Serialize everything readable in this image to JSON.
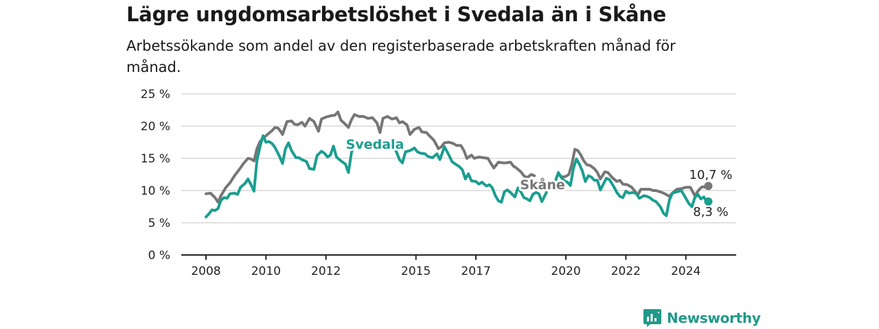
{
  "title": "Lägre ungdomsarbetslöshet i Svedala än i Skåne",
  "subtitle": "Arbetssökande som andel av den registerbaserade arbetskraften månad för månad.",
  "brand": {
    "name": "Newsworthy"
  },
  "colors": {
    "svedala": "#1a9e90",
    "skane": "#767676",
    "grid": "#d9d9d9",
    "axis": "#222222",
    "text": "#222222"
  },
  "chart_data": {
    "type": "line",
    "title": "Lägre ungdomsarbetslöshet i Svedala än i Skåne",
    "subtitle": "Arbetssökande som andel av den registerbaserade arbetskraften månad för månad.",
    "xlabel": "",
    "ylabel": "",
    "ylim": [
      0,
      25
    ],
    "yticks": [
      0,
      5,
      10,
      15,
      20,
      25
    ],
    "ytick_labels": [
      "0 %",
      "5 %",
      "10 %",
      "15 %",
      "20 %",
      "25 %"
    ],
    "xticks": [
      2008,
      2010,
      2012,
      2015,
      2017,
      2020,
      2022,
      2024
    ],
    "xtick_labels": [
      "2008",
      "2010",
      "2012",
      "2015",
      "2017",
      "2020",
      "2022",
      "2024"
    ],
    "xlim": [
      2007.6,
      2025.8
    ],
    "grid": true,
    "legend": "inline labels",
    "series": [
      {
        "name": "Skåne",
        "end_label": "10,7 %",
        "points": [
          [
            2008.0,
            9.5
          ],
          [
            2008.15,
            9.6
          ],
          [
            2008.3,
            8.9
          ],
          [
            2008.4,
            8.2
          ],
          [
            2008.5,
            9.2
          ],
          [
            2008.65,
            10.4
          ],
          [
            2008.8,
            11.2
          ],
          [
            2008.95,
            12.3
          ],
          [
            2009.1,
            13.2
          ],
          [
            2009.25,
            14.2
          ],
          [
            2009.4,
            15.0
          ],
          [
            2009.5,
            14.9
          ],
          [
            2009.6,
            14.6
          ],
          [
            2009.7,
            16.5
          ],
          [
            2009.8,
            17.6
          ],
          [
            2009.9,
            18.1
          ],
          [
            2010.0,
            18.5
          ],
          [
            2010.1,
            18.9
          ],
          [
            2010.2,
            19.3
          ],
          [
            2010.3,
            19.8
          ],
          [
            2010.4,
            19.7
          ],
          [
            2010.5,
            19.1
          ],
          [
            2010.55,
            18.7
          ],
          [
            2010.7,
            20.7
          ],
          [
            2010.85,
            20.8
          ],
          [
            2010.95,
            20.3
          ],
          [
            2011.05,
            20.2
          ],
          [
            2011.2,
            20.6
          ],
          [
            2011.3,
            20.0
          ],
          [
            2011.45,
            21.2
          ],
          [
            2011.6,
            20.7
          ],
          [
            2011.75,
            19.2
          ],
          [
            2011.85,
            21.1
          ],
          [
            2012.0,
            21.4
          ],
          [
            2012.15,
            21.6
          ],
          [
            2012.3,
            21.7
          ],
          [
            2012.4,
            22.2
          ],
          [
            2012.5,
            20.9
          ],
          [
            2012.6,
            20.5
          ],
          [
            2012.75,
            19.8
          ],
          [
            2012.85,
            21.0
          ],
          [
            2012.95,
            21.8
          ],
          [
            2013.1,
            21.5
          ],
          [
            2013.25,
            21.5
          ],
          [
            2013.4,
            21.2
          ],
          [
            2013.55,
            21.3
          ],
          [
            2013.7,
            20.5
          ],
          [
            2013.8,
            19.0
          ],
          [
            2013.9,
            21.2
          ],
          [
            2014.05,
            21.5
          ],
          [
            2014.2,
            21.1
          ],
          [
            2014.35,
            21.3
          ],
          [
            2014.45,
            20.5
          ],
          [
            2014.55,
            20.7
          ],
          [
            2014.7,
            20.2
          ],
          [
            2014.8,
            18.7
          ],
          [
            2014.95,
            19.5
          ],
          [
            2015.1,
            19.8
          ],
          [
            2015.2,
            19.1
          ],
          [
            2015.35,
            19.0
          ],
          [
            2015.45,
            18.5
          ],
          [
            2015.6,
            17.8
          ],
          [
            2015.75,
            16.5
          ],
          [
            2015.85,
            16.8
          ],
          [
            2015.95,
            17.4
          ],
          [
            2016.1,
            17.5
          ],
          [
            2016.25,
            17.3
          ],
          [
            2016.35,
            17.0
          ],
          [
            2016.5,
            17.0
          ],
          [
            2016.6,
            16.2
          ],
          [
            2016.7,
            15.0
          ],
          [
            2016.85,
            15.5
          ],
          [
            2016.95,
            15.0
          ],
          [
            2017.1,
            15.2
          ],
          [
            2017.25,
            15.1
          ],
          [
            2017.4,
            15.0
          ],
          [
            2017.5,
            14.2
          ],
          [
            2017.6,
            13.5
          ],
          [
            2017.75,
            14.4
          ],
          [
            2017.9,
            14.3
          ],
          [
            2018.0,
            14.3
          ],
          [
            2018.15,
            14.4
          ],
          [
            2018.25,
            13.8
          ],
          [
            2018.35,
            13.5
          ],
          [
            2018.5,
            12.9
          ],
          [
            2018.6,
            12.3
          ],
          [
            2018.7,
            12.0
          ],
          [
            2018.85,
            12.5
          ],
          [
            2018.95,
            12.3
          ]
        ],
        "points_after_label": [
          [
            2019.8,
            12.3
          ],
          [
            2019.9,
            12.1
          ],
          [
            2020.0,
            12.2
          ],
          [
            2020.1,
            12.5
          ],
          [
            2020.2,
            14.1
          ],
          [
            2020.3,
            16.4
          ],
          [
            2020.4,
            16.2
          ],
          [
            2020.5,
            15.5
          ],
          [
            2020.6,
            14.6
          ],
          [
            2020.7,
            14.0
          ],
          [
            2020.8,
            13.9
          ],
          [
            2020.95,
            13.4
          ],
          [
            2021.05,
            12.8
          ],
          [
            2021.15,
            11.8
          ],
          [
            2021.3,
            12.9
          ],
          [
            2021.4,
            12.8
          ],
          [
            2021.55,
            12.0
          ],
          [
            2021.7,
            11.4
          ],
          [
            2021.8,
            11.6
          ],
          [
            2021.9,
            11.0
          ],
          [
            2022.05,
            10.9
          ],
          [
            2022.2,
            10.5
          ],
          [
            2022.3,
            9.9
          ],
          [
            2022.4,
            9.3
          ],
          [
            2022.5,
            10.2
          ],
          [
            2022.65,
            10.2
          ],
          [
            2022.8,
            10.2
          ],
          [
            2022.9,
            10.0
          ],
          [
            2023.0,
            10.0
          ],
          [
            2023.15,
            9.8
          ],
          [
            2023.3,
            9.5
          ],
          [
            2023.45,
            9.1
          ],
          [
            2023.55,
            9.6
          ],
          [
            2023.7,
            10.2
          ],
          [
            2023.85,
            10.3
          ],
          [
            2024.0,
            10.5
          ],
          [
            2024.15,
            10.5
          ],
          [
            2024.3,
            9.2
          ],
          [
            2024.45,
            10.2
          ],
          [
            2024.55,
            10.6
          ],
          [
            2024.65,
            10.5
          ],
          [
            2024.75,
            10.7
          ]
        ]
      },
      {
        "name": "Svedala",
        "end_label": "8,3 %",
        "points": [
          [
            2008.0,
            5.9
          ],
          [
            2008.1,
            6.4
          ],
          [
            2008.2,
            7.0
          ],
          [
            2008.3,
            6.9
          ],
          [
            2008.4,
            7.2
          ],
          [
            2008.5,
            8.5
          ],
          [
            2008.6,
            8.9
          ],
          [
            2008.7,
            8.8
          ],
          [
            2008.8,
            9.5
          ],
          [
            2008.95,
            9.6
          ],
          [
            2009.05,
            9.4
          ],
          [
            2009.15,
            10.5
          ],
          [
            2009.3,
            11.1
          ],
          [
            2009.4,
            11.8
          ],
          [
            2009.5,
            10.9
          ],
          [
            2009.6,
            9.9
          ],
          [
            2009.7,
            14.7
          ],
          [
            2009.8,
            16.8
          ],
          [
            2009.9,
            18.5
          ],
          [
            2010.0,
            17.5
          ],
          [
            2010.1,
            17.6
          ],
          [
            2010.2,
            17.3
          ],
          [
            2010.3,
            16.7
          ],
          [
            2010.45,
            15.3
          ],
          [
            2010.55,
            14.2
          ],
          [
            2010.65,
            16.5
          ],
          [
            2010.75,
            17.4
          ],
          [
            2010.85,
            16.2
          ],
          [
            2011.0,
            15.1
          ],
          [
            2011.1,
            15.1
          ],
          [
            2011.2,
            14.8
          ],
          [
            2011.35,
            14.5
          ],
          [
            2011.45,
            13.4
          ],
          [
            2011.6,
            13.3
          ],
          [
            2011.7,
            15.4
          ],
          [
            2011.85,
            16.1
          ],
          [
            2011.95,
            15.8
          ],
          [
            2012.05,
            15.2
          ],
          [
            2012.15,
            15.5
          ],
          [
            2012.25,
            16.9
          ],
          [
            2012.35,
            15.2
          ],
          [
            2012.5,
            14.6
          ],
          [
            2012.65,
            14.1
          ],
          [
            2012.75,
            12.8
          ],
          [
            2012.85,
            15.9
          ],
          [
            2012.95,
            17.3
          ],
          [
            2013.1,
            17.0
          ]
        ],
        "points_after_label": [
          [
            2014.25,
            16.8
          ],
          [
            2014.35,
            16.0
          ],
          [
            2014.45,
            14.8
          ],
          [
            2014.55,
            14.3
          ],
          [
            2014.65,
            16.0
          ],
          [
            2014.8,
            16.2
          ],
          [
            2014.95,
            16.6
          ],
          [
            2015.05,
            16.0
          ],
          [
            2015.15,
            15.8
          ],
          [
            2015.3,
            15.7
          ],
          [
            2015.4,
            15.3
          ],
          [
            2015.55,
            15.1
          ],
          [
            2015.7,
            15.7
          ],
          [
            2015.8,
            14.8
          ],
          [
            2015.95,
            16.8
          ],
          [
            2016.1,
            15.5
          ],
          [
            2016.2,
            14.5
          ],
          [
            2016.35,
            14.0
          ],
          [
            2016.45,
            13.7
          ],
          [
            2016.55,
            13.2
          ],
          [
            2016.65,
            11.8
          ],
          [
            2016.75,
            12.6
          ],
          [
            2016.85,
            11.5
          ],
          [
            2017.0,
            11.4
          ],
          [
            2017.1,
            11.0
          ],
          [
            2017.2,
            11.3
          ],
          [
            2017.35,
            10.7
          ],
          [
            2017.45,
            10.9
          ],
          [
            2017.55,
            10.4
          ],
          [
            2017.65,
            9.2
          ],
          [
            2017.75,
            8.4
          ],
          [
            2017.85,
            8.2
          ],
          [
            2017.95,
            9.8
          ],
          [
            2018.05,
            10.1
          ],
          [
            2018.15,
            9.7
          ],
          [
            2018.3,
            9.0
          ],
          [
            2018.4,
            10.4
          ],
          [
            2018.5,
            9.8
          ],
          [
            2018.6,
            8.9
          ],
          [
            2018.7,
            8.7
          ],
          [
            2018.8,
            8.4
          ],
          [
            2018.9,
            9.4
          ],
          [
            2019.0,
            9.7
          ],
          [
            2019.1,
            9.5
          ],
          [
            2019.2,
            8.3
          ],
          [
            2019.35,
            9.7
          ]
        ],
        "points_after_label_2": [
          [
            2019.55,
            10.5
          ],
          [
            2019.65,
            11.5
          ],
          [
            2019.75,
            12.8
          ],
          [
            2019.85,
            12.0
          ],
          [
            2019.95,
            11.5
          ],
          [
            2020.05,
            11.3
          ],
          [
            2020.15,
            10.8
          ],
          [
            2020.25,
            13.4
          ],
          [
            2020.35,
            14.9
          ],
          [
            2020.45,
            14.1
          ],
          [
            2020.55,
            13.0
          ],
          [
            2020.65,
            11.4
          ],
          [
            2020.75,
            12.3
          ],
          [
            2020.85,
            12.1
          ],
          [
            2020.95,
            11.6
          ],
          [
            2021.05,
            11.6
          ],
          [
            2021.15,
            10.1
          ],
          [
            2021.25,
            11.0
          ],
          [
            2021.35,
            11.9
          ],
          [
            2021.45,
            11.7
          ],
          [
            2021.6,
            10.6
          ],
          [
            2021.7,
            9.7
          ],
          [
            2021.8,
            9.1
          ],
          [
            2021.9,
            8.9
          ],
          [
            2022.0,
            9.9
          ],
          [
            2022.1,
            9.6
          ],
          [
            2022.25,
            9.7
          ],
          [
            2022.35,
            9.5
          ],
          [
            2022.45,
            8.8
          ],
          [
            2022.6,
            9.2
          ],
          [
            2022.7,
            9.1
          ],
          [
            2022.8,
            8.9
          ],
          [
            2022.9,
            8.5
          ],
          [
            2023.0,
            8.3
          ],
          [
            2023.15,
            7.5
          ],
          [
            2023.25,
            6.5
          ],
          [
            2023.35,
            6.1
          ],
          [
            2023.45,
            8.5
          ],
          [
            2023.55,
            9.6
          ],
          [
            2023.7,
            9.8
          ],
          [
            2023.85,
            10.0
          ],
          [
            2024.0,
            8.8
          ],
          [
            2024.1,
            8.0
          ],
          [
            2024.2,
            7.5
          ],
          [
            2024.3,
            8.9
          ],
          [
            2024.4,
            9.4
          ],
          [
            2024.5,
            8.7
          ],
          [
            2024.6,
            9.0
          ],
          [
            2024.7,
            8.2
          ],
          [
            2024.75,
            8.3
          ]
        ]
      }
    ]
  }
}
